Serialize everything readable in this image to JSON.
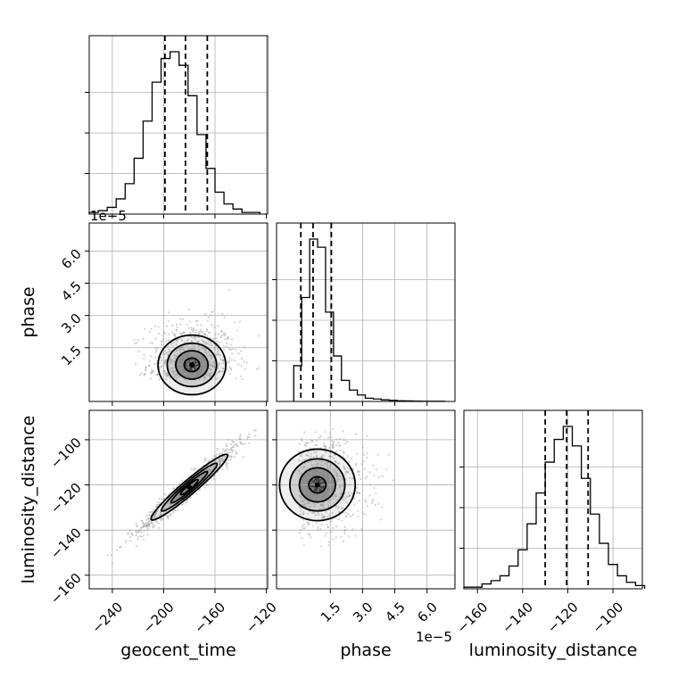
{
  "chart_data": {
    "type": "corner",
    "parameters": [
      "geocent_time",
      "phase",
      "luminosity_distance"
    ],
    "axis_labels": {
      "x": [
        "geocent_time",
        "phase",
        "luminosity_distance"
      ],
      "y": [
        "",
        "phase",
        "luminosity_distance"
      ]
    },
    "ranges": {
      "geocent_time": [
        -258,
        -119
      ],
      "phase": [
        -1e-05,
        7.3e-05
      ],
      "luminosity_distance": [
        -166,
        -87
      ]
    },
    "ticks": {
      "geocent_time": [
        -240,
        -200,
        -160,
        -120
      ],
      "phase": [
        1.5e-05,
        3e-05,
        4.5e-05,
        6e-05
      ],
      "luminosity_distance": [
        -160,
        -140,
        -120,
        -100
      ]
    },
    "tick_labels": {
      "geocent_time": [
        "−240",
        "−200",
        "−160",
        "−120"
      ],
      "phase": [
        "1.5",
        "3.0",
        "4.5",
        "6.0"
      ],
      "luminosity_distance": [
        "−160",
        "−140",
        "−120",
        "−100"
      ]
    },
    "offset_text": "1e−5",
    "quantiles": {
      "geocent_time": [
        -199,
        -183,
        -166
      ],
      "phase": [
        1.3e-06,
        7e-06,
        1.55e-05
      ],
      "luminosity_distance": [
        -130,
        -120.5,
        -111
      ]
    },
    "histograms": {
      "geocent_time": {
        "bin_edges": [
          -258,
          -251,
          -244,
          -237,
          -230,
          -223,
          -216,
          -209,
          -202,
          -195,
          -188,
          -181,
          -174,
          -167,
          -160,
          -153,
          -146,
          -139,
          -132,
          -125
        ],
        "counts": [
          1,
          2,
          4,
          9,
          18,
          33,
          55,
          78,
          92,
          96,
          88,
          70,
          47,
          27,
          13,
          6,
          3,
          1,
          1
        ]
      },
      "phase": {
        "bin_edges": [
          -2e-06,
          1.7e-06,
          5.4e-06,
          9.1e-06,
          1.28e-05,
          1.65e-05,
          2.02e-05,
          2.39e-05,
          2.76e-05,
          3.13e-05,
          3.5e-05,
          3.87e-05,
          4.24e-05,
          4.61e-05,
          4.98e-05,
          5.35e-05,
          5.72e-05,
          6.09e-05,
          6.46e-05,
          6.83e-05
        ],
        "counts": [
          22,
          64,
          100,
          95,
          55,
          28,
          13,
          7,
          4,
          2,
          1.5,
          1,
          0.7,
          0.4,
          0.3,
          0.2,
          0.1,
          0.1,
          0.1
        ]
      },
      "luminosity_distance": {
        "bin_edges": [
          -166,
          -162,
          -158,
          -154,
          -150,
          -146,
          -142,
          -138,
          -134,
          -130,
          -126,
          -122,
          -118,
          -114,
          -110,
          -106,
          -102,
          -98,
          -94,
          -90,
          -86
        ],
        "counts": [
          1,
          1,
          3,
          5,
          8,
          14,
          24,
          40,
          59,
          78,
          92,
          100,
          88,
          68,
          46,
          28,
          15,
          8,
          4,
          2
        ]
      }
    },
    "joint": [
      {
        "x": "geocent_time",
        "y": "phase",
        "peak": [
          -178,
          7e-06
        ],
        "spread": [
          12,
          7e-06
        ],
        "correlation": 0,
        "scatter_extent": [
          -245,
          -125,
          2e-07,
          6.2e-05
        ]
      },
      {
        "x": "geocent_time",
        "y": "luminosity_distance",
        "peak": [
          -180,
          -121
        ],
        "spread": [
          14,
          7
        ],
        "correlation": 0.97,
        "scatter_extent": [
          -245,
          -125,
          -158,
          -90
        ]
      },
      {
        "x": "phase",
        "y": "luminosity_distance",
        "peak": [
          9e-06,
          -120
        ],
        "spread": [
          8e-06,
          8
        ],
        "correlation": 0,
        "scatter_extent": [
          5e-07,
          5.8e-05,
          -148,
          -95
        ]
      }
    ],
    "grid": true,
    "legend": "none"
  }
}
